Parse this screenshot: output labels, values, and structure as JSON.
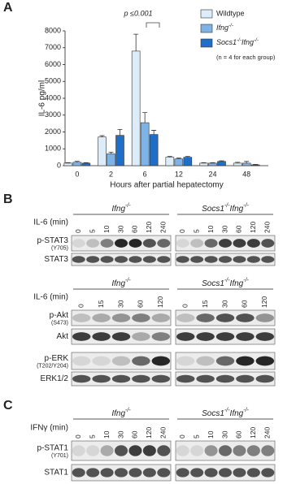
{
  "panel_labels": [
    "A",
    "B",
    "C"
  ],
  "chart_data": {
    "type": "bar",
    "ylabel": "IL-6 pg/ml",
    "xlabel": "Hours after partial hepatectomy",
    "annotation": "p ≤0.001",
    "note": "(n = 4 for each group)",
    "categories": [
      "0",
      "2",
      "6",
      "12",
      "24",
      "48"
    ],
    "series": [
      {
        "name": "Wildtype",
        "color": "#dcecf8",
        "values": [
          150,
          1700,
          6800,
          500,
          150,
          150
        ],
        "errors": [
          30,
          80,
          1000,
          50,
          30,
          50
        ]
      },
      {
        "name": "Ifng-/-",
        "color": "#7fb2e5",
        "values": [
          200,
          700,
          2550,
          400,
          150,
          150
        ],
        "errors": [
          60,
          100,
          600,
          50,
          30,
          100
        ]
      },
      {
        "name": "Socs1-/-Ifng-/-",
        "color": "#1f6fc9",
        "values": [
          150,
          1800,
          1850,
          500,
          250,
          50
        ],
        "errors": [
          30,
          350,
          250,
          50,
          40,
          30
        ]
      }
    ],
    "ylim": [
      0,
      8000
    ],
    "yticks": [
      0,
      1000,
      2000,
      3000,
      4000,
      5000,
      6000,
      7000,
      8000
    ],
    "legend": "upper right"
  },
  "blots": [
    {
      "treatment": "IL-6 (min)",
      "groups": [
        {
          "name": "Ifng-/-",
          "lanes": [
            0,
            5,
            10,
            30,
            60,
            120,
            240
          ]
        },
        {
          "name": "Socs1-/-Ifng-/-",
          "lanes": [
            0,
            5,
            10,
            30,
            60,
            120,
            240
          ]
        }
      ],
      "rows": [
        {
          "label": "p-STAT3",
          "sublabel": "(Y705)"
        },
        {
          "label": "STAT3"
        }
      ]
    },
    {
      "treatment": "IL-6 (min)",
      "groups": [
        {
          "name": "Ifng-/-",
          "lanes": [
            0,
            15,
            30,
            60,
            120
          ]
        },
        {
          "name": "Socs1-/-Ifng-/-",
          "lanes": [
            0,
            15,
            30,
            60,
            120
          ]
        }
      ],
      "rows": [
        {
          "label": "p-Akt",
          "sublabel": "(S473)"
        },
        {
          "label": "Akt"
        },
        {
          "label": "p-ERK",
          "sublabel": "(T202/Y204)"
        },
        {
          "label": "ERK1/2"
        }
      ]
    },
    {
      "treatment": "IFNγ (min)",
      "groups": [
        {
          "name": "Ifng-/-",
          "lanes": [
            0,
            5,
            10,
            30,
            60,
            120,
            240
          ]
        },
        {
          "name": "Socs1-/-Ifng-/-",
          "lanes": [
            0,
            5,
            10,
            30,
            60,
            120,
            240
          ]
        }
      ],
      "rows": [
        {
          "label": "p-STAT1",
          "sublabel": "(Y701)"
        },
        {
          "label": "STAT1"
        }
      ]
    }
  ]
}
